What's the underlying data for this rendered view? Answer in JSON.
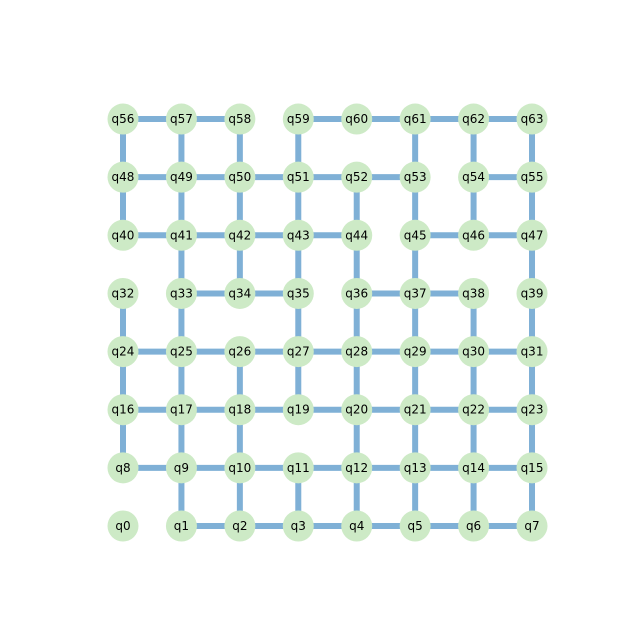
{
  "colors": {
    "background": "#ffffff",
    "node_fill": "#cdeac6",
    "edge": "#7fb0d6",
    "label": "#000000"
  },
  "grid": {
    "rows": 8,
    "cols": 8
  },
  "nodes": [
    "q0",
    "q1",
    "q2",
    "q3",
    "q4",
    "q5",
    "q6",
    "q7",
    "q8",
    "q9",
    "q10",
    "q11",
    "q12",
    "q13",
    "q14",
    "q15",
    "q16",
    "q17",
    "q18",
    "q19",
    "q20",
    "q21",
    "q22",
    "q23",
    "q24",
    "q25",
    "q26",
    "q27",
    "q28",
    "q29",
    "q30",
    "q31",
    "q32",
    "q33",
    "q34",
    "q35",
    "q36",
    "q37",
    "q38",
    "q39",
    "q40",
    "q41",
    "q42",
    "q43",
    "q44",
    "q45",
    "q46",
    "q47",
    "q48",
    "q49",
    "q50",
    "q51",
    "q52",
    "q53",
    "q54",
    "q55",
    "q56",
    "q57",
    "q58",
    "q59",
    "q60",
    "q61",
    "q62",
    "q63"
  ],
  "edges": [
    [
      1,
      2
    ],
    [
      2,
      3
    ],
    [
      3,
      4
    ],
    [
      4,
      5
    ],
    [
      5,
      6
    ],
    [
      6,
      7
    ],
    [
      8,
      9
    ],
    [
      9,
      10
    ],
    [
      10,
      11
    ],
    [
      11,
      12
    ],
    [
      12,
      13
    ],
    [
      13,
      14
    ],
    [
      14,
      15
    ],
    [
      16,
      17
    ],
    [
      17,
      18
    ],
    [
      18,
      19
    ],
    [
      19,
      20
    ],
    [
      20,
      21
    ],
    [
      21,
      22
    ],
    [
      22,
      23
    ],
    [
      24,
      25
    ],
    [
      25,
      26
    ],
    [
      26,
      27
    ],
    [
      27,
      28
    ],
    [
      28,
      29
    ],
    [
      29,
      30
    ],
    [
      30,
      31
    ],
    [
      33,
      34
    ],
    [
      34,
      35
    ],
    [
      36,
      37
    ],
    [
      37,
      38
    ],
    [
      40,
      41
    ],
    [
      41,
      42
    ],
    [
      42,
      43
    ],
    [
      43,
      44
    ],
    [
      45,
      46
    ],
    [
      46,
      47
    ],
    [
      48,
      49
    ],
    [
      49,
      50
    ],
    [
      50,
      51
    ],
    [
      51,
      52
    ],
    [
      52,
      53
    ],
    [
      54,
      55
    ],
    [
      56,
      57
    ],
    [
      57,
      58
    ],
    [
      59,
      60
    ],
    [
      60,
      61
    ],
    [
      61,
      62
    ],
    [
      62,
      63
    ],
    [
      1,
      9
    ],
    [
      2,
      10
    ],
    [
      3,
      11
    ],
    [
      4,
      12
    ],
    [
      5,
      13
    ],
    [
      6,
      14
    ],
    [
      7,
      15
    ],
    [
      8,
      16
    ],
    [
      9,
      17
    ],
    [
      10,
      18
    ],
    [
      12,
      20
    ],
    [
      13,
      21
    ],
    [
      14,
      22
    ],
    [
      15,
      23
    ],
    [
      16,
      24
    ],
    [
      17,
      25
    ],
    [
      18,
      26
    ],
    [
      19,
      27
    ],
    [
      20,
      28
    ],
    [
      21,
      29
    ],
    [
      22,
      30
    ],
    [
      23,
      31
    ],
    [
      24,
      32
    ],
    [
      25,
      33
    ],
    [
      27,
      35
    ],
    [
      28,
      36
    ],
    [
      29,
      37
    ],
    [
      30,
      38
    ],
    [
      31,
      39
    ],
    [
      33,
      41
    ],
    [
      34,
      42
    ],
    [
      35,
      43
    ],
    [
      36,
      44
    ],
    [
      37,
      45
    ],
    [
      39,
      47
    ],
    [
      40,
      48
    ],
    [
      41,
      49
    ],
    [
      42,
      50
    ],
    [
      43,
      51
    ],
    [
      44,
      52
    ],
    [
      45,
      53
    ],
    [
      46,
      54
    ],
    [
      47,
      55
    ],
    [
      48,
      56
    ],
    [
      49,
      57
    ],
    [
      50,
      58
    ],
    [
      51,
      59
    ],
    [
      53,
      61
    ],
    [
      54,
      62
    ],
    [
      55,
      63
    ]
  ]
}
